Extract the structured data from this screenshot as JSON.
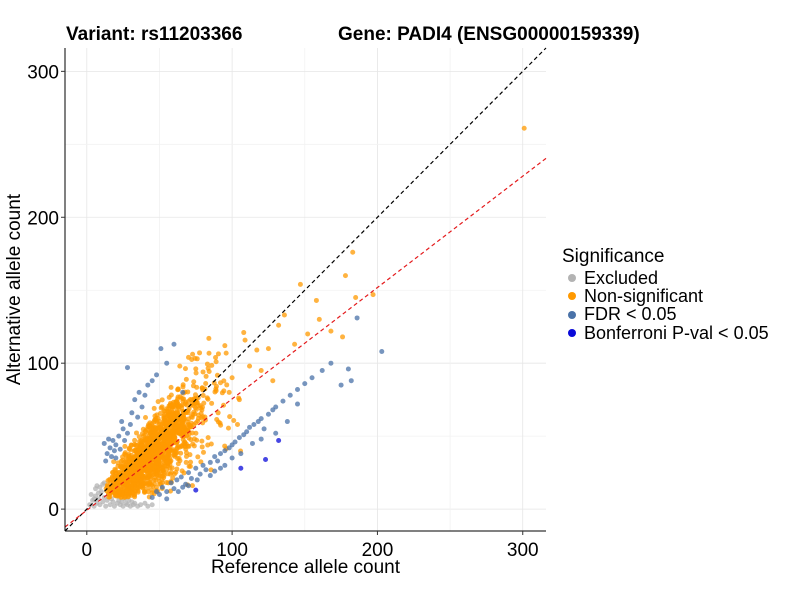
{
  "title_left": "Variant: rs11203366",
  "title_right": "Gene: PADI4 (ENSG00000159339)",
  "chart_data": {
    "type": "scatter",
    "xlabel": "Reference allele count",
    "ylabel": "Alternative allele count",
    "xlim": [
      -15,
      316
    ],
    "ylim": [
      -15,
      316
    ],
    "x_ticks": [
      0,
      100,
      200,
      300
    ],
    "y_ticks": [
      0,
      100,
      200,
      300
    ],
    "grid": true,
    "reference_lines": [
      {
        "name": "identity",
        "slope": 1.0,
        "intercept": 0,
        "color": "#000000",
        "dash": "dashed"
      },
      {
        "name": "fitted",
        "slope": 0.7632,
        "intercept": -0.8,
        "color": "#e41a1c",
        "dash": "dashed"
      }
    ],
    "legend": {
      "title": "Significance",
      "position": "right",
      "entries": [
        {
          "label": "Excluded",
          "color": "#b3b3b3"
        },
        {
          "label": "Non-significant",
          "color": "#ff9900"
        },
        {
          "label": "FDR < 0.05",
          "color": "#4a72a8"
        },
        {
          "label": "Bonferroni P-val < 0.05",
          "color": "#0a0ad9"
        }
      ]
    },
    "series": [
      {
        "name": "Excluded",
        "color": "#b3b3b3",
        "points": [
          [
            2,
            3
          ],
          [
            4,
            6
          ],
          [
            5,
            2
          ],
          [
            6,
            9
          ],
          [
            7,
            4
          ],
          [
            8,
            7
          ],
          [
            9,
            3
          ],
          [
            10,
            12
          ],
          [
            11,
            5
          ],
          [
            12,
            8
          ],
          [
            13,
            2
          ],
          [
            14,
            6
          ],
          [
            15,
            10
          ],
          [
            16,
            3
          ],
          [
            17,
            7
          ],
          [
            18,
            5
          ],
          [
            19,
            2
          ],
          [
            20,
            9
          ],
          [
            21,
            4
          ],
          [
            22,
            6
          ],
          [
            23,
            3
          ],
          [
            24,
            5
          ],
          [
            25,
            2
          ],
          [
            26,
            7
          ],
          [
            27,
            4
          ],
          [
            28,
            3
          ],
          [
            29,
            6
          ],
          [
            30,
            2
          ],
          [
            31,
            5
          ],
          [
            32,
            3
          ],
          [
            33,
            4
          ],
          [
            35,
            2
          ],
          [
            37,
            3
          ],
          [
            40,
            4
          ],
          [
            42,
            2
          ],
          [
            45,
            3
          ],
          [
            6,
            14
          ],
          [
            9,
            15
          ],
          [
            12,
            18
          ],
          [
            8,
            11
          ],
          [
            14,
            15
          ],
          [
            11,
            17
          ],
          [
            5,
            7
          ],
          [
            3,
            10
          ],
          [
            7,
            16
          ]
        ]
      },
      {
        "name": "Non-significant",
        "color": "#ff9900",
        "points": []
      },
      {
        "name": "FDR < 0.05",
        "color": "#4a72a8",
        "points": [
          [
            12,
            45
          ],
          [
            14,
            38
          ],
          [
            16,
            42
          ],
          [
            15,
            48
          ],
          [
            18,
            47
          ],
          [
            20,
            44
          ],
          [
            22,
            50
          ],
          [
            19,
            40
          ],
          [
            25,
            55
          ],
          [
            28,
            52
          ],
          [
            24,
            60
          ],
          [
            30,
            58
          ],
          [
            35,
            63
          ],
          [
            38,
            70
          ],
          [
            33,
            75
          ],
          [
            40,
            78
          ],
          [
            45,
            88
          ],
          [
            48,
            92
          ],
          [
            55,
            100
          ],
          [
            60,
            113
          ],
          [
            66,
            80
          ],
          [
            28,
            97
          ],
          [
            51,
            110
          ],
          [
            20,
            35
          ],
          [
            17,
            36
          ],
          [
            23,
            41
          ],
          [
            26,
            47
          ],
          [
            13,
            33
          ],
          [
            31,
            66
          ],
          [
            36,
            80
          ],
          [
            42,
            85
          ],
          [
            45,
            8
          ],
          [
            50,
            10
          ],
          [
            55,
            12
          ],
          [
            60,
            14
          ],
          [
            58,
            18
          ],
          [
            62,
            20
          ],
          [
            65,
            22
          ],
          [
            68,
            17
          ],
          [
            70,
            25
          ],
          [
            72,
            21
          ],
          [
            75,
            28
          ],
          [
            78,
            24
          ],
          [
            80,
            30
          ],
          [
            82,
            27
          ],
          [
            85,
            32
          ],
          [
            88,
            36
          ],
          [
            90,
            33
          ],
          [
            92,
            38
          ],
          [
            95,
            40
          ],
          [
            98,
            42
          ],
          [
            100,
            44
          ],
          [
            102,
            46
          ],
          [
            105,
            49
          ],
          [
            108,
            51
          ],
          [
            110,
            53
          ],
          [
            112,
            56
          ],
          [
            115,
            58
          ],
          [
            118,
            60
          ],
          [
            120,
            62
          ],
          [
            125,
            65
          ],
          [
            128,
            68
          ],
          [
            130,
            70
          ],
          [
            135,
            74
          ],
          [
            140,
            78
          ],
          [
            145,
            82
          ],
          [
            150,
            86
          ],
          [
            155,
            90
          ],
          [
            162,
            95
          ],
          [
            168,
            100
          ],
          [
            175,
            85
          ],
          [
            180,
            96
          ],
          [
            182,
            88
          ],
          [
            186,
            131
          ],
          [
            203,
            108
          ],
          [
            145,
            72
          ],
          [
            138,
            60
          ],
          [
            122,
            55
          ],
          [
            95,
            30
          ],
          [
            88,
            26
          ],
          [
            76,
            20
          ],
          [
            66,
            15
          ],
          [
            55,
            7
          ],
          [
            48,
            12
          ],
          [
            52,
            15
          ],
          [
            63,
            12
          ],
          [
            70,
            16
          ],
          [
            85,
            23
          ],
          [
            92,
            28
          ],
          [
            100,
            35
          ],
          [
            106,
            38
          ],
          [
            114,
            45
          ],
          [
            120,
            48
          ],
          [
            130,
            52
          ]
        ]
      },
      {
        "name": "Bonferroni P-val < 0.05",
        "color": "#0a0ad9",
        "points": [
          [
            75,
            13
          ],
          [
            106,
            28
          ],
          [
            123,
            34
          ],
          [
            132,
            47
          ]
        ]
      }
    ]
  }
}
